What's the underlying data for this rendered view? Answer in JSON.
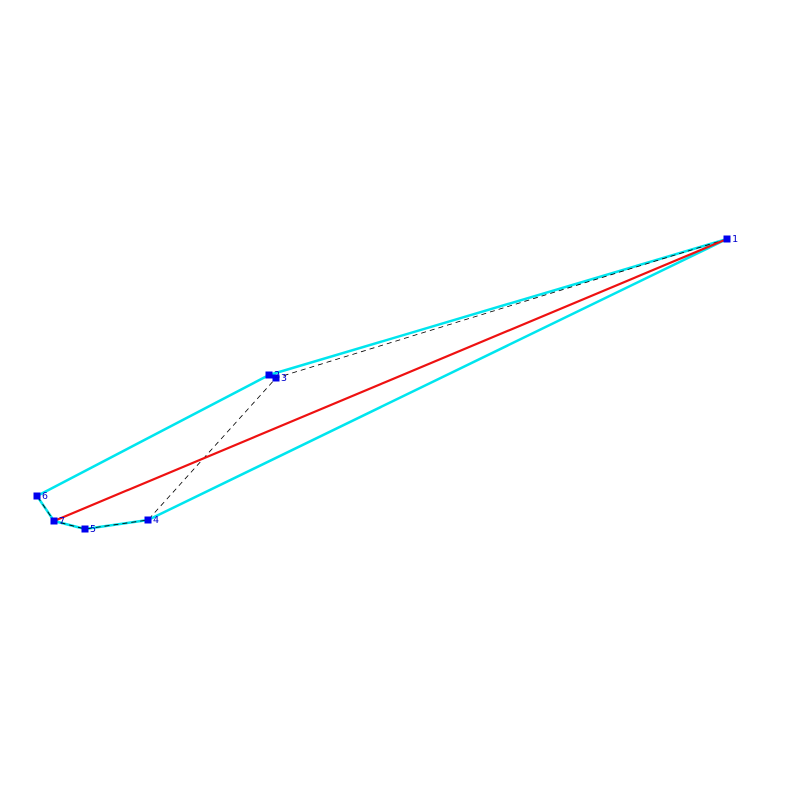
{
  "colors": {
    "hull": "#00e5ee",
    "path": "#ee1111",
    "dashed": "#000000",
    "point": "#0000ee",
    "label": "#0000cc",
    "background": "#ffffff"
  },
  "points": [
    {
      "id": "1",
      "label": "1"
    },
    {
      "id": "2",
      "label": "2"
    },
    {
      "id": "3",
      "label": "3"
    },
    {
      "id": "4",
      "label": "4"
    },
    {
      "id": "5",
      "label": "5"
    },
    {
      "id": "6",
      "label": "6"
    },
    {
      "id": "7",
      "label": "7"
    }
  ],
  "hull_order": [
    "1",
    "2",
    "6",
    "7",
    "5",
    "4",
    "1"
  ],
  "dashed_order": [
    "1",
    "3",
    "4",
    "5",
    "7",
    "6"
  ],
  "red_segment": [
    "1",
    "7"
  ]
}
